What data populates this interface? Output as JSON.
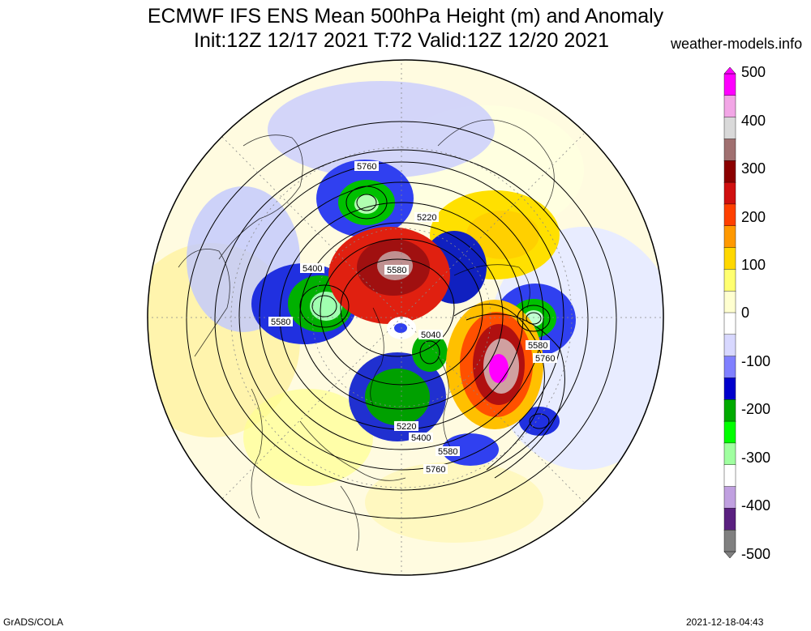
{
  "title": {
    "line1": "ECMWF IFS ENS Mean 500hPa Height (m) and Anomaly",
    "line2": "Init:12Z 12/17 2021  T:72 Valid:12Z 12/20 2021"
  },
  "credit": "weather-models.info",
  "footer": {
    "left": "GrADS/COLA",
    "right": "2021-12-18-04:43"
  },
  "colorbar": {
    "labels": [
      "500",
      "400",
      "300",
      "200",
      "100",
      "0",
      "-100",
      "-200",
      "-300",
      "-400",
      "-500"
    ],
    "colors": [
      "#ff00ff",
      "#f2a6e6",
      "#d9d9d9",
      "#a07070",
      "#8b0000",
      "#d01010",
      "#ff4000",
      "#ff9900",
      "#ffd800",
      "#ffff70",
      "#ffffd0",
      "#ffffff",
      "#d8d8ff",
      "#8080ff",
      "#0000cc",
      "#00aa00",
      "#00ff00",
      "#a0ffa0",
      "#ffffff",
      "#c0a0e0",
      "#5a2080",
      "#808080"
    ]
  },
  "contour_labels": [
    "5760",
    "5220",
    "5400",
    "5580",
    "5580",
    "5040",
    "5580",
    "5760",
    "5220",
    "5400",
    "5580",
    "5760"
  ]
}
